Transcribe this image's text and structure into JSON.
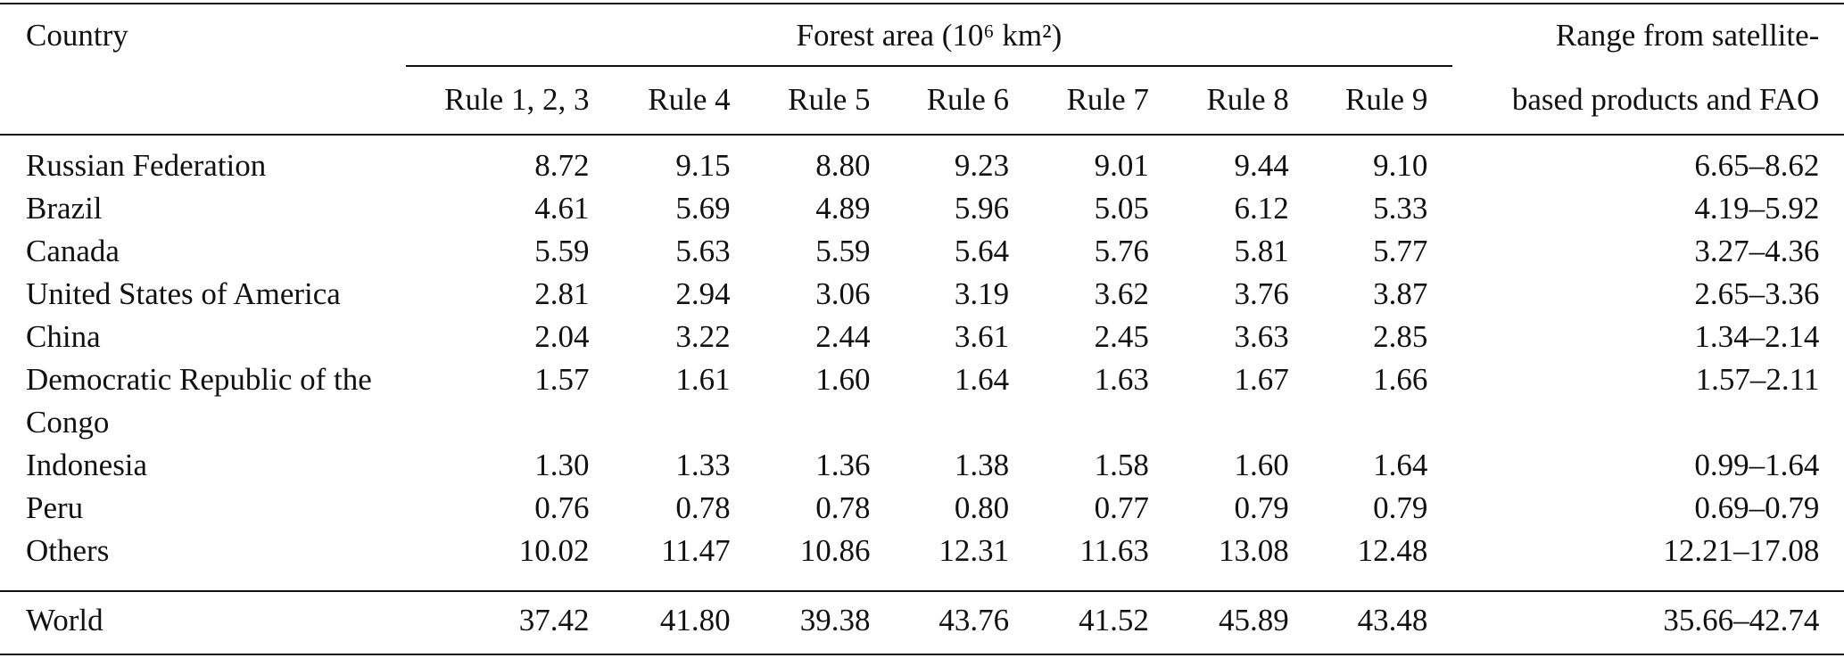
{
  "table": {
    "header": {
      "country": "Country",
      "group": "Forest area (10⁶ km²)",
      "rules": [
        "Rule 1, 2, 3",
        "Rule 4",
        "Rule 5",
        "Rule 6",
        "Rule 7",
        "Rule 8",
        "Rule 9"
      ],
      "range": [
        "Range from satellite-",
        "based products and FAO"
      ]
    },
    "rows": [
      {
        "country": "Russian Federation",
        "values": [
          "8.72",
          "9.15",
          "8.80",
          "9.23",
          "9.01",
          "9.44",
          "9.10"
        ],
        "range": "6.65–8.62"
      },
      {
        "country": "Brazil",
        "values": [
          "4.61",
          "5.69",
          "4.89",
          "5.96",
          "5.05",
          "6.12",
          "5.33"
        ],
        "range": "4.19–5.92"
      },
      {
        "country": "Canada",
        "values": [
          "5.59",
          "5.63",
          "5.59",
          "5.64",
          "5.76",
          "5.81",
          "5.77"
        ],
        "range": "3.27–4.36"
      },
      {
        "country": "United States of America",
        "values": [
          "2.81",
          "2.94",
          "3.06",
          "3.19",
          "3.62",
          "3.76",
          "3.87"
        ],
        "range": "2.65–3.36"
      },
      {
        "country": "China",
        "values": [
          "2.04",
          "3.22",
          "2.44",
          "3.61",
          "2.45",
          "3.63",
          "2.85"
        ],
        "range": "1.34–2.14"
      },
      {
        "country": "Democratic Republic of the Congo",
        "values": [
          "1.57",
          "1.61",
          "1.60",
          "1.64",
          "1.63",
          "1.67",
          "1.66"
        ],
        "range": "1.57–2.11"
      },
      {
        "country": "Indonesia",
        "values": [
          "1.30",
          "1.33",
          "1.36",
          "1.38",
          "1.58",
          "1.60",
          "1.64"
        ],
        "range": "0.99–1.64"
      },
      {
        "country": "Peru",
        "values": [
          "0.76",
          "0.78",
          "0.78",
          "0.80",
          "0.77",
          "0.79",
          "0.79"
        ],
        "range": "0.69–0.79"
      },
      {
        "country": "Others",
        "values": [
          "10.02",
          "11.47",
          "10.86",
          "12.31",
          "11.63",
          "13.08",
          "12.48"
        ],
        "range": "12.21–17.08"
      }
    ],
    "total": {
      "country": "World",
      "values": [
        "37.42",
        "41.80",
        "39.38",
        "43.76",
        "41.52",
        "45.89",
        "43.48"
      ],
      "range": "35.66–42.74"
    }
  }
}
